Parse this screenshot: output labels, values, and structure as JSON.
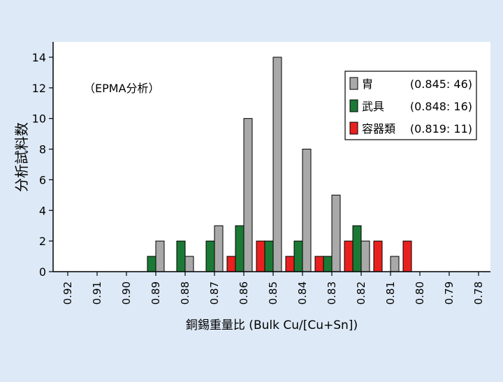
{
  "chart_data": {
    "type": "bar",
    "annotation": "（EPMA分析）",
    "xlabel": "銅錫重量比  (Bulk Cu/[Cu+Sn])",
    "ylabel": "分析試料数",
    "ylim": [
      0,
      15
    ],
    "yticks": [
      0,
      2,
      4,
      6,
      8,
      10,
      12,
      14
    ],
    "categories": [
      "0.92",
      "0.91",
      "0.90",
      "0.89",
      "0.88",
      "0.87",
      "0.86",
      "0.85",
      "0.84",
      "0.83",
      "0.82",
      "0.81",
      "0.80",
      "0.79",
      "0.78"
    ],
    "grid": false,
    "legend_position": "top-right",
    "series": [
      {
        "name": "胄",
        "stat": "(0.845: 46)",
        "color": "#a9a9a9",
        "values": [
          0,
          0,
          0,
          2,
          1,
          3,
          10,
          14,
          8,
          5,
          2,
          1,
          0,
          0,
          0
        ]
      },
      {
        "name": "武具",
        "stat": "(0.848: 16)",
        "color": "#1a7a35",
        "values": [
          0,
          0,
          0,
          1,
          2,
          2,
          3,
          2,
          2,
          1,
          3,
          0,
          0,
          0,
          0
        ]
      },
      {
        "name": "容器類",
        "stat": "(0.819: 11)",
        "color": "#e8211f",
        "values": [
          0,
          0,
          0,
          0,
          0,
          0,
          1,
          2,
          1,
          1,
          2,
          2,
          2,
          0,
          0
        ]
      }
    ]
  }
}
